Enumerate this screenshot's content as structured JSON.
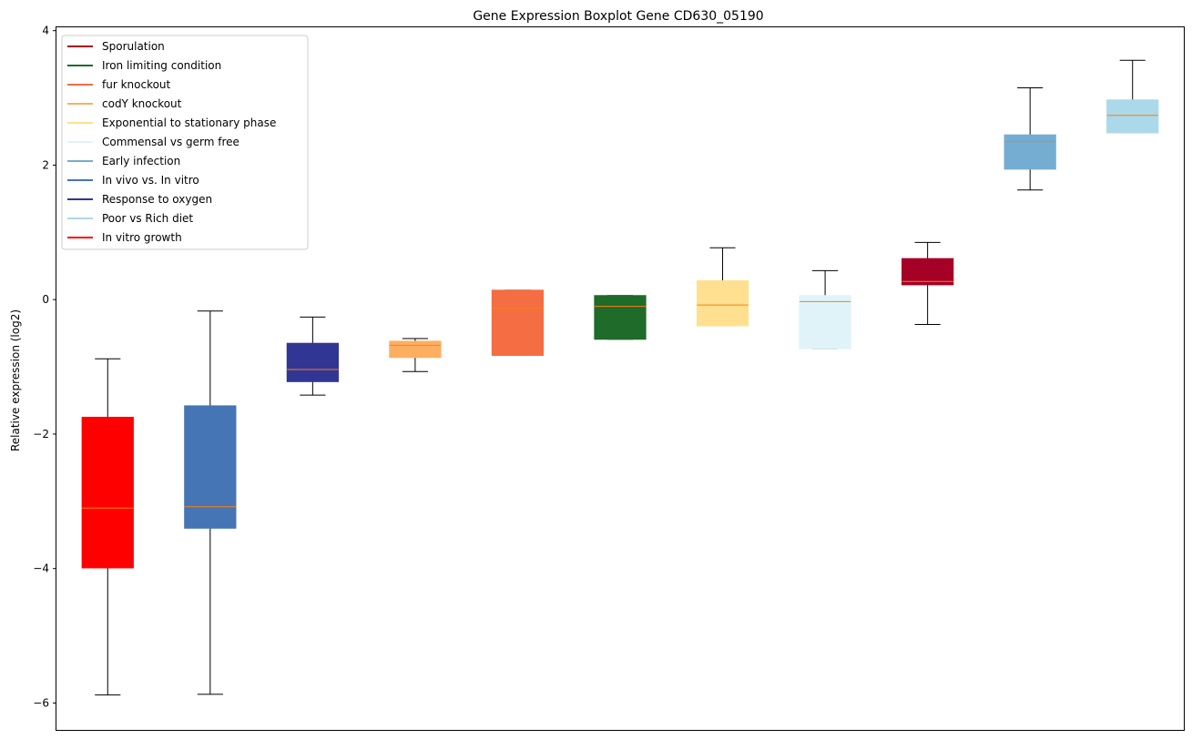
{
  "chart_data": {
    "type": "boxplot",
    "title": "Gene Expression Boxplot Gene CD630_05190",
    "xlabel": "",
    "ylabel": "Relative expression (log2)",
    "ylim": [
      -6.4,
      4.05
    ],
    "yticks": [
      -6,
      -4,
      -2,
      0,
      2,
      4
    ],
    "ytick_labels": [
      "−6",
      "−4",
      "−2",
      "0",
      "2",
      "4"
    ],
    "legend_position": "top-left",
    "legend": [
      {
        "label": "Sporulation",
        "color": "#a50026"
      },
      {
        "label": "Iron limiting condition",
        "color": "#1e6b2a"
      },
      {
        "label": "fur knockout",
        "color": "#f46d43"
      },
      {
        "label": "codY knockout",
        "color": "#fdae61"
      },
      {
        "label": "Exponential to stationary phase",
        "color": "#fee090"
      },
      {
        "label": "Commensal vs germ free",
        "color": "#e0f3f8"
      },
      {
        "label": "Early infection",
        "color": "#74add1"
      },
      {
        "label": "In vivo vs. In vitro",
        "color": "#4575b4"
      },
      {
        "label": "Response to oxygen",
        "color": "#313695"
      },
      {
        "label": "Poor vs Rich diet",
        "color": "#abd9e9"
      },
      {
        "label": "In vitro growth",
        "color": "#ff0000"
      }
    ],
    "boxes": [
      {
        "group": "In vitro growth",
        "color": "#ff0000",
        "whislo": -5.88,
        "q1": -3.99,
        "med": -3.1,
        "q3": -1.75,
        "whishi": -0.88
      },
      {
        "group": "In vivo vs. In vitro",
        "color": "#4575b4",
        "whislo": -5.87,
        "q1": -3.4,
        "med": -3.08,
        "q3": -1.58,
        "whishi": -0.17
      },
      {
        "group": "Response to oxygen",
        "color": "#313695",
        "whislo": -1.42,
        "q1": -1.22,
        "med": -1.04,
        "q3": -0.65,
        "whishi": -0.26
      },
      {
        "group": "codY knockout",
        "color": "#fdae61",
        "whislo": -1.07,
        "q1": -0.86,
        "med": -0.68,
        "q3": -0.62,
        "whishi": -0.58
      },
      {
        "group": "fur knockout",
        "color": "#f46d43",
        "whislo": -0.83,
        "q1": -0.83,
        "med": -0.13,
        "q3": 0.14,
        "whishi": 0.14
      },
      {
        "group": "Iron limiting condition",
        "color": "#1e6b2a",
        "whislo": -0.59,
        "q1": -0.59,
        "med": -0.1,
        "q3": 0.06,
        "whishi": 0.06
      },
      {
        "group": "Exponential to stationary phase",
        "color": "#fee090",
        "whislo": -0.39,
        "q1": -0.39,
        "med": -0.08,
        "q3": 0.28,
        "whishi": 0.77
      },
      {
        "group": "Commensal vs germ free",
        "color": "#e0f3f8",
        "whislo": -0.73,
        "q1": -0.73,
        "med": -0.03,
        "q3": 0.06,
        "whishi": 0.43
      },
      {
        "group": "Sporulation",
        "color": "#a50026",
        "whislo": -0.37,
        "q1": 0.22,
        "med": 0.27,
        "q3": 0.61,
        "whishi": 0.85
      },
      {
        "group": "Early infection",
        "color": "#74add1",
        "whislo": 1.63,
        "q1": 1.94,
        "med": 2.35,
        "q3": 2.45,
        "whishi": 3.15
      },
      {
        "group": "Poor vs Rich diet",
        "color": "#abd9e9",
        "whislo": 2.48,
        "q1": 2.48,
        "med": 2.74,
        "q3": 2.97,
        "whishi": 3.56
      }
    ],
    "median_color": "#ff7f0e"
  }
}
